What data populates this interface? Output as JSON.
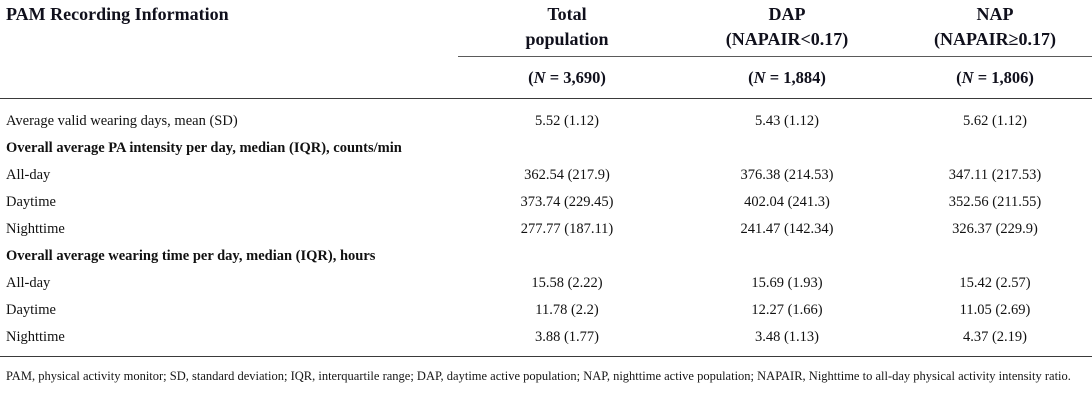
{
  "table": {
    "title": "PAM Recording Information",
    "columns": [
      {
        "line1": "Total",
        "line2": "population",
        "n": {
          "open": "(",
          "sym": "N",
          "rest": " = 3,690)"
        }
      },
      {
        "line1": "DAP",
        "line2": "(NAPAIR<0.17)",
        "n": {
          "open": "(",
          "sym": "N",
          "rest": " = 1,884)"
        }
      },
      {
        "line1": "NAP",
        "line2": "(NAPAIR≥0.17)",
        "n": {
          "open": "(",
          "sym": "N",
          "rest": " = 1,806)"
        }
      }
    ],
    "rows": [
      {
        "label": "Average valid wearing days, mean (SD)",
        "values": [
          "5.52 (1.12)",
          "5.43 (1.12)",
          "5.62 (1.12)"
        ]
      },
      {
        "label": "Overall average PA intensity per day, median (IQR), counts/min",
        "section": true
      },
      {
        "label": "All-day",
        "values": [
          "362.54 (217.9)",
          "376.38 (214.53)",
          "347.11 (217.53)"
        ]
      },
      {
        "label": "Daytime",
        "values": [
          "373.74 (229.45)",
          "402.04 (241.3)",
          "352.56 (211.55)"
        ]
      },
      {
        "label": "Nighttime",
        "values": [
          "277.77 (187.11)",
          "241.47 (142.34)",
          "326.37 (229.9)"
        ]
      },
      {
        "label": "Overall average wearing time per day, median (IQR), hours",
        "section": true
      },
      {
        "label": "All-day",
        "values": [
          "15.58 (2.22)",
          "15.69 (1.93)",
          "15.42 (2.57)"
        ]
      },
      {
        "label": "Daytime",
        "values": [
          "11.78 (2.2)",
          "12.27 (1.66)",
          "11.05 (2.69)"
        ]
      },
      {
        "label": "Nighttime",
        "values": [
          "3.88 (1.77)",
          "3.48 (1.13)",
          "4.37 (2.19)"
        ]
      }
    ],
    "footnote": "PAM, physical activity monitor; SD, standard deviation; IQR, interquartile range; DAP, daytime active population; NAP, nighttime active population; NAPAIR, Nighttime to all-day physical activity intensity ratio."
  }
}
